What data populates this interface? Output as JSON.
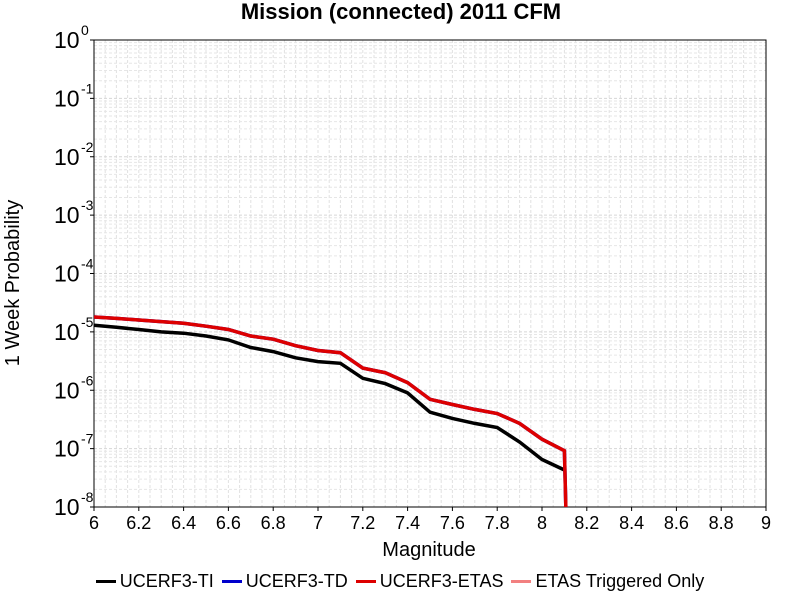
{
  "chart_data": {
    "type": "line",
    "title": "Mission (connected) 2011 CFM",
    "xlabel": "Magnitude",
    "ylabel": "1 Week Probability",
    "xlim": [
      6,
      9
    ],
    "ylim": [
      1e-08,
      1
    ],
    "yscale": "log",
    "grid": true,
    "legend_position": "bottom",
    "xticks": [
      "6",
      "6.2",
      "6.4",
      "6.6",
      "6.8",
      "7",
      "7.2",
      "7.4",
      "7.6",
      "7.8",
      "8",
      "8.2",
      "8.4",
      "8.6",
      "8.8",
      "9"
    ],
    "yticks": [
      {
        "base": "10",
        "exp": "0"
      },
      {
        "base": "10",
        "exp": "-1"
      },
      {
        "base": "10",
        "exp": "-2"
      },
      {
        "base": "10",
        "exp": "-3"
      },
      {
        "base": "10",
        "exp": "-4"
      },
      {
        "base": "10",
        "exp": "-5"
      },
      {
        "base": "10",
        "exp": "-6"
      },
      {
        "base": "10",
        "exp": "-7"
      },
      {
        "base": "10",
        "exp": "-8"
      }
    ],
    "series": [
      {
        "name": "UCERF3-TI",
        "color": "#000000",
        "x": [
          6.0,
          6.1,
          6.2,
          6.3,
          6.4,
          6.5,
          6.6,
          6.7,
          6.8,
          6.9,
          7.0,
          7.1,
          7.2,
          7.3,
          7.4,
          7.5,
          7.6,
          7.7,
          7.8,
          7.9,
          8.0,
          8.1
        ],
        "y": [
          1.3e-05,
          1.2e-05,
          1.1e-05,
          1e-05,
          9.5e-06,
          8.5e-06,
          7.3e-06,
          5.4e-06,
          4.6e-06,
          3.6e-06,
          3.1e-06,
          2.9e-06,
          1.6e-06,
          1.3e-06,
          9e-07,
          4.2e-07,
          3.3e-07,
          2.7e-07,
          2.3e-07,
          1.3e-07,
          6.5e-08,
          4.3e-08
        ]
      },
      {
        "name": "UCERF3-TD",
        "color": "#0000cc",
        "x": [
          6.0,
          6.1,
          6.2,
          6.3,
          6.4,
          6.5,
          6.6,
          6.7,
          6.8,
          6.9,
          7.0,
          7.1,
          7.2,
          7.3,
          7.4,
          7.5,
          7.6,
          7.7,
          7.8,
          7.9,
          8.0,
          8.1,
          8.11
        ],
        "y": [
          1.8e-05,
          1.7e-05,
          1.6e-05,
          1.5e-05,
          1.4e-05,
          1.25e-05,
          1.1e-05,
          8.5e-06,
          7.5e-06,
          5.8e-06,
          4.8e-06,
          4.4e-06,
          2.4e-06,
          2e-06,
          1.35e-06,
          7e-07,
          5.7e-07,
          4.7e-07,
          4e-07,
          2.7e-07,
          1.45e-07,
          9.2e-08,
          3e-09
        ]
      },
      {
        "name": "UCERF3-ETAS",
        "color": "#dd0000",
        "x": [
          6.0,
          6.1,
          6.2,
          6.3,
          6.4,
          6.5,
          6.6,
          6.7,
          6.8,
          6.9,
          7.0,
          7.1,
          7.2,
          7.3,
          7.4,
          7.5,
          7.6,
          7.7,
          7.8,
          7.9,
          8.0,
          8.1,
          8.11
        ],
        "y": [
          1.8e-05,
          1.7e-05,
          1.6e-05,
          1.5e-05,
          1.4e-05,
          1.25e-05,
          1.1e-05,
          8.5e-06,
          7.5e-06,
          5.8e-06,
          4.8e-06,
          4.4e-06,
          2.4e-06,
          2e-06,
          1.35e-06,
          7e-07,
          5.7e-07,
          4.7e-07,
          4e-07,
          2.7e-07,
          1.45e-07,
          9.2e-08,
          3e-09
        ]
      },
      {
        "name": "ETAS Triggered Only",
        "color": "#f28080",
        "x": [],
        "y": []
      }
    ]
  }
}
